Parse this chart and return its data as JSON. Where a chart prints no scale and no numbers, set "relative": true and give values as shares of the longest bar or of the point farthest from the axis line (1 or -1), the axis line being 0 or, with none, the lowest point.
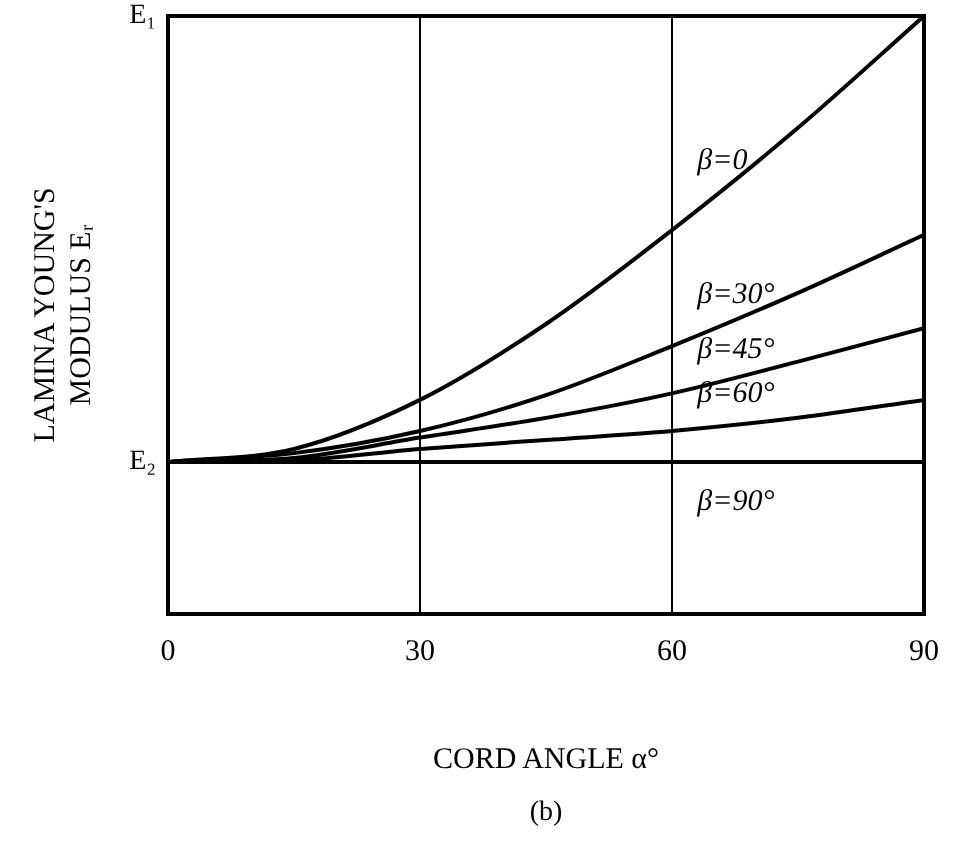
{
  "chart_data": {
    "type": "line",
    "xlabel": "CORD ANGLE α°",
    "ylabel": "LAMINA YOUNG'S\nMODULUS Eᵣ",
    "relative": true,
    "annotations": [
      "E₁",
      "E₂",
      "(b)"
    ],
    "x": [
      0,
      15,
      30,
      45,
      60,
      75,
      90
    ],
    "series": [
      {
        "name": "β=0",
        "color": "#000000",
        "values": [
          0.254,
          0.276,
          0.358,
          0.485,
          0.642,
          0.813,
          1
        ]
      },
      {
        "name": "β=30°",
        "color": "#000000",
        "values": [
          0.254,
          0.269,
          0.306,
          0.366,
          0.448,
          0.537,
          0.634
        ]
      },
      {
        "name": "β=45°",
        "color": "#000000",
        "values": [
          0.254,
          0.261,
          0.295,
          0.328,
          0.369,
          0.422,
          0.478
        ]
      },
      {
        "name": "β=60°",
        "color": "#000000",
        "values": [
          0.254,
          0.257,
          0.276,
          0.291,
          0.306,
          0.328,
          0.358
        ]
      },
      {
        "name": "β=90°",
        "color": "#000000",
        "values": [
          0.254,
          0.254,
          0.254,
          0.254,
          0.254,
          0.254,
          0.254
        ]
      }
    ],
    "xlim": [
      0,
      90
    ],
    "xticks": [
      0,
      30,
      60,
      90
    ],
    "ref_lines": [
      {
        "axis": "x",
        "value": 30
      },
      {
        "axis": "x",
        "value": 60
      }
    ],
    "legend": false,
    "marker": "none",
    "line_style": "solid"
  }
}
